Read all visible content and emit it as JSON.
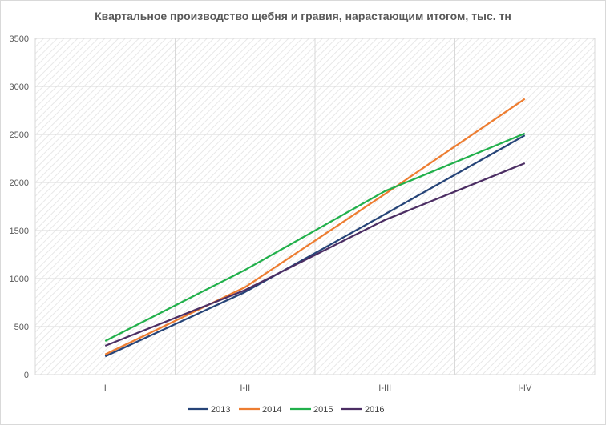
{
  "chart_data": {
    "type": "line",
    "title": "Квартальное производство щебня и гравия, нарастающим итогом, тыс. тн",
    "xlabel": "",
    "ylabel": "",
    "categories": [
      "I",
      "I-II",
      "I-III",
      "I-IV"
    ],
    "ylim": [
      0,
      3500
    ],
    "yticks": [
      0,
      500,
      1000,
      1500,
      2000,
      2500,
      3000,
      3500
    ],
    "grid": true,
    "legend": "bottom",
    "series": [
      {
        "name": "2013",
        "color": "#264478",
        "values": [
          190,
          860,
          1670,
          2490
        ]
      },
      {
        "name": "2014",
        "color": "#ed7d31",
        "values": [
          210,
          910,
          1880,
          2870
        ]
      },
      {
        "name": "2015",
        "color": "#21b04b",
        "values": [
          350,
          1090,
          1910,
          2510
        ]
      },
      {
        "name": "2016",
        "color": "#4b2d63",
        "values": [
          300,
          880,
          1610,
          2200
        ]
      }
    ]
  }
}
